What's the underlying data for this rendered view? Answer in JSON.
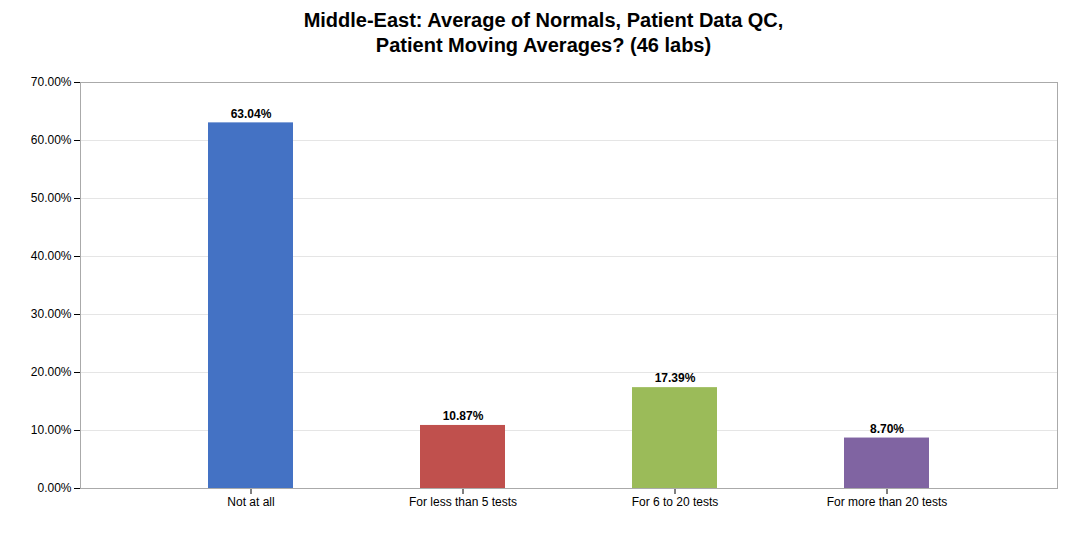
{
  "chart_data": {
    "type": "bar",
    "title": "Middle-East: Average of Normals, Patient Data QC,\nPatient Moving Averages? (46 labs)",
    "categories": [
      "Not at all",
      "For less than 5 tests",
      "For 6 to 20 tests",
      "For more than 20 tests"
    ],
    "values": [
      63.04,
      10.87,
      17.39,
      8.7
    ],
    "value_labels": [
      "63.04%",
      "10.87%",
      "17.39%",
      "8.70%"
    ],
    "colors": [
      "#4472C4",
      "#C0504D",
      "#9BBB59",
      "#8064A2"
    ],
    "ylim": [
      0,
      70
    ],
    "yticks": [
      {
        "value": 0,
        "label": "0.00%"
      },
      {
        "value": 10,
        "label": "10.00%"
      },
      {
        "value": 20,
        "label": "20.00%"
      },
      {
        "value": 30,
        "label": "30.00%"
      },
      {
        "value": 40,
        "label": "40.00%"
      },
      {
        "value": 50,
        "label": "50.00%"
      },
      {
        "value": 60,
        "label": "60.00%"
      },
      {
        "value": 70,
        "label": "70.00%"
      }
    ],
    "grid": true,
    "data_labels": true
  }
}
